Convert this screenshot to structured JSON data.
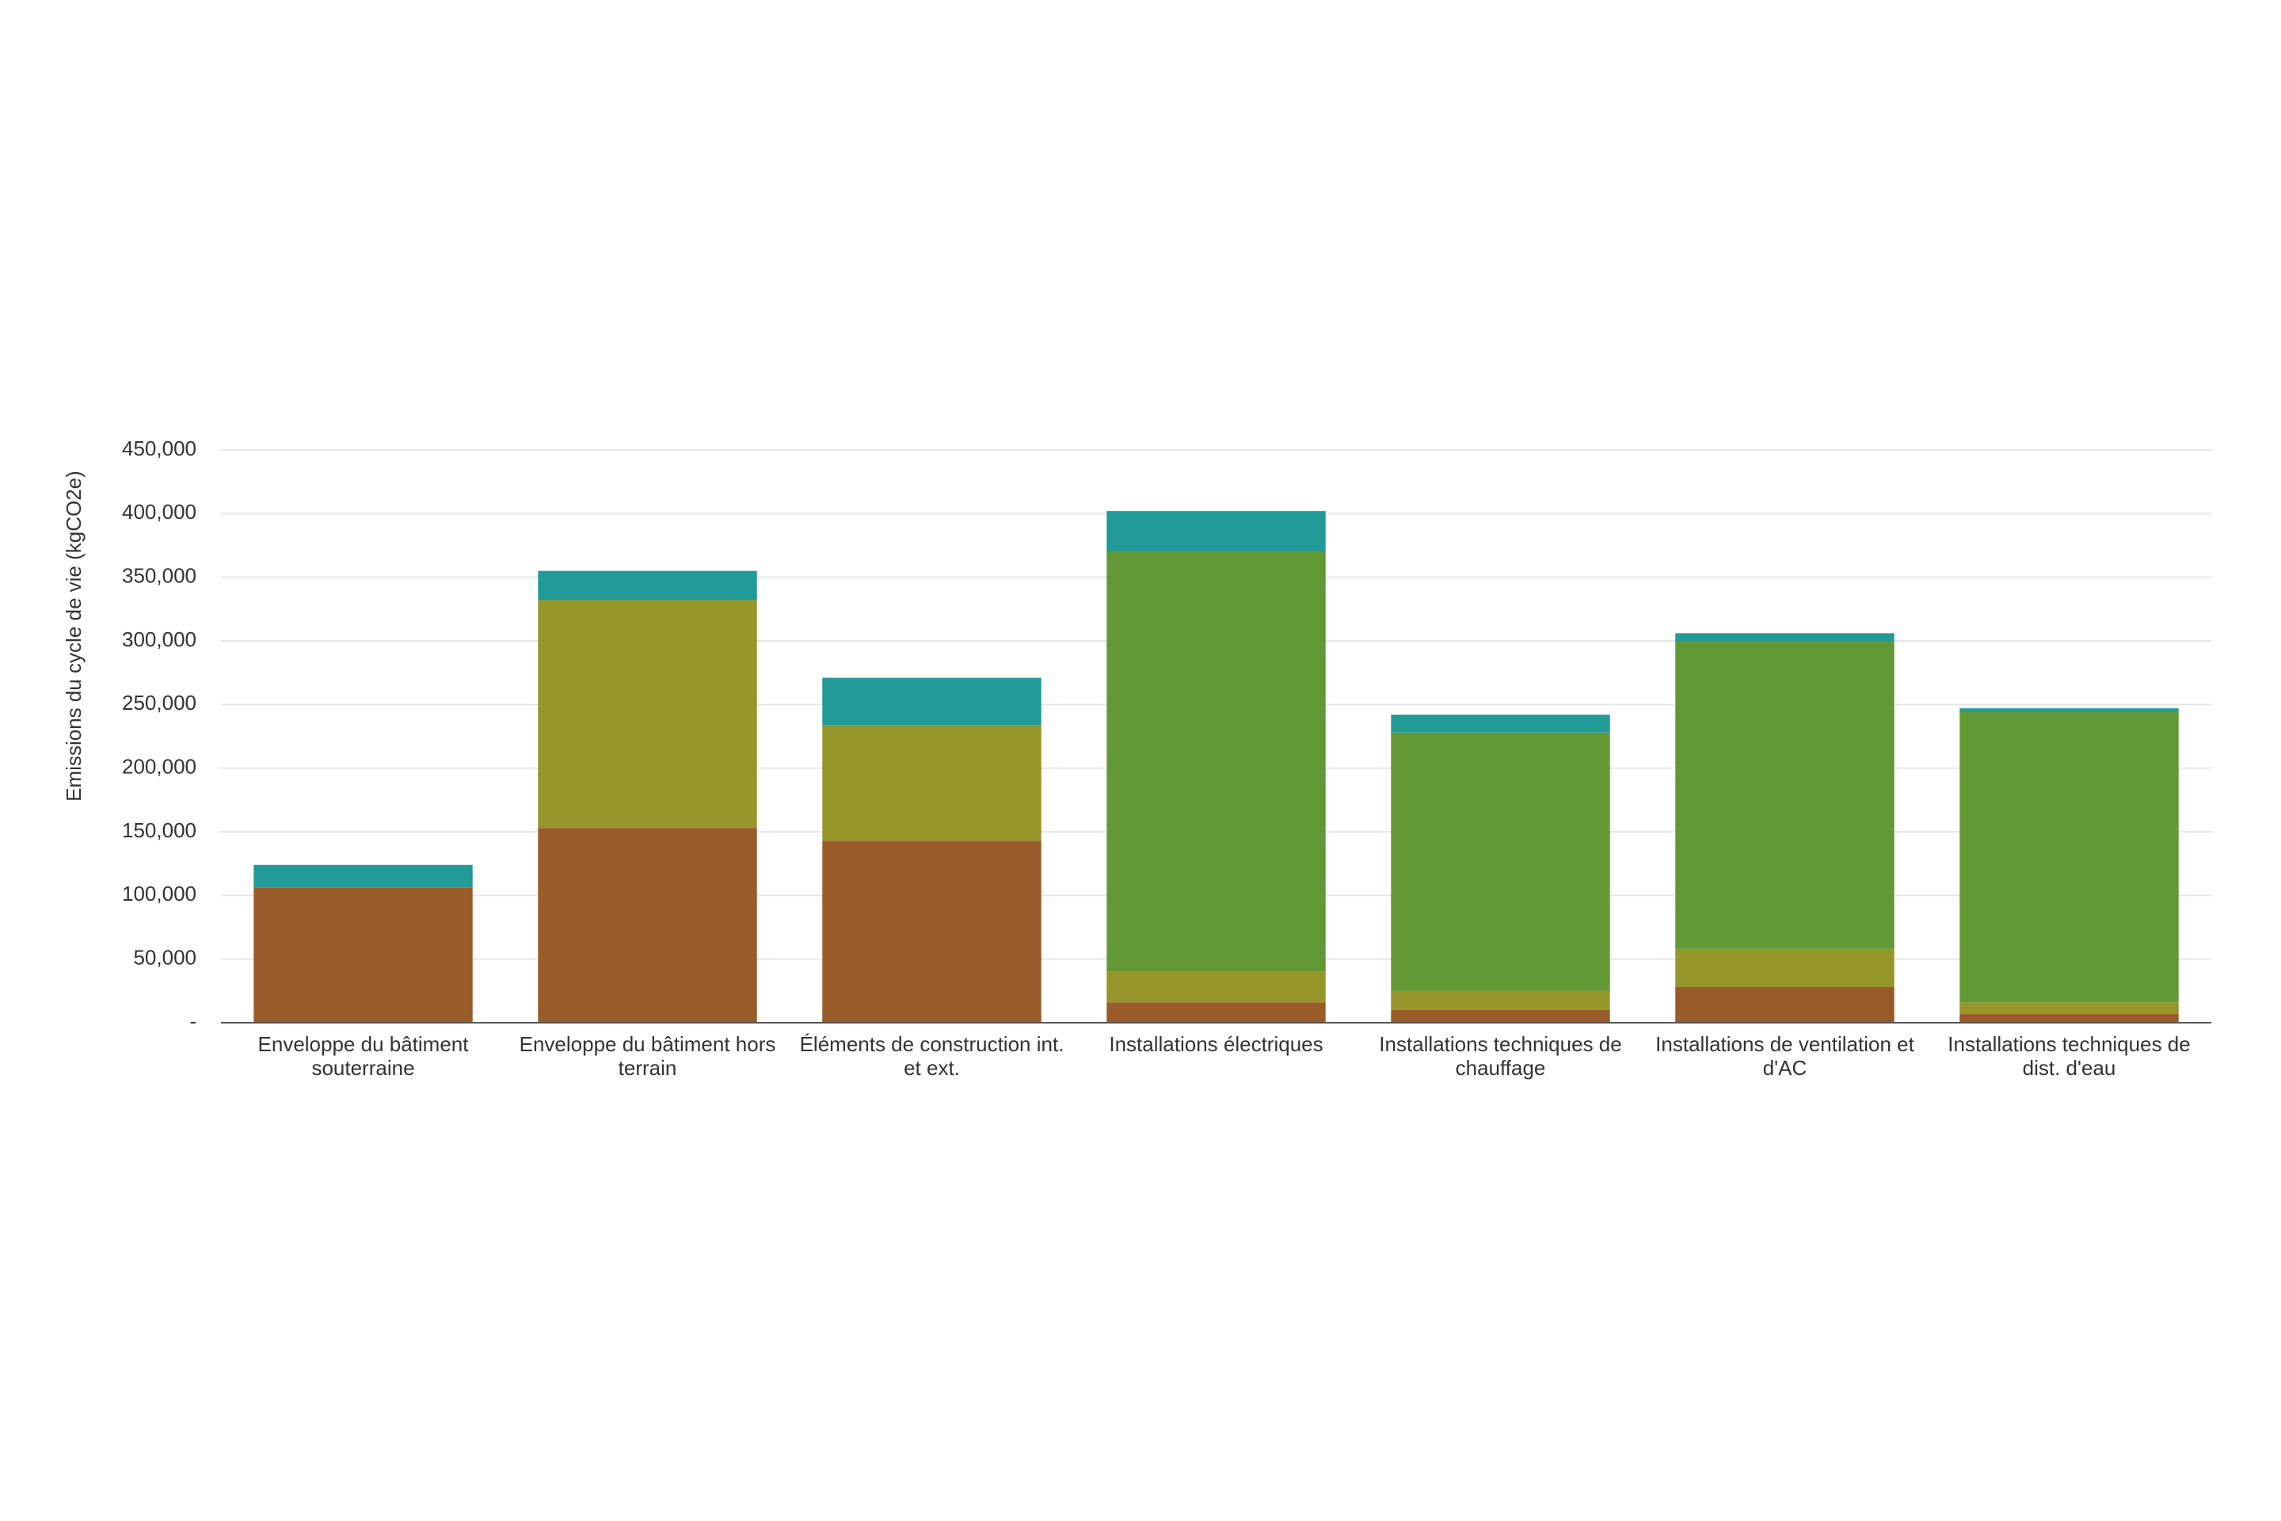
{
  "chart_data": {
    "type": "stacked_bar",
    "y_label": "Emissions du cycle de vie (kgCO2e)",
    "categories": [
      "Enveloppe du bâtiment souterraine",
      "Enveloppe du bâtiment hors terrain",
      "Éléments de construction int. et ext.",
      "Installations électriques",
      "Installations techniques de chauffage",
      "Installations de ventilation et d'AC",
      "Installations techniques de dist. d'eau"
    ],
    "series": [
      {
        "color": "#9a5b2a",
        "values": [
          106000,
          153000,
          143000,
          16000,
          10000,
          28000,
          7000
        ]
      },
      {
        "color": "#96962b",
        "values": [
          0,
          179000,
          91000,
          24000,
          15000,
          30000,
          9000
        ]
      },
      {
        "color": "#629935",
        "values": [
          0,
          0,
          0,
          330000,
          203000,
          242000,
          228000
        ]
      },
      {
        "color": "#229a98",
        "values": [
          18000,
          23000,
          37000,
          32000,
          14000,
          6000,
          3000
        ]
      }
    ],
    "ylim": [
      0,
      450000
    ],
    "yticks": [
      {
        "value": 0,
        "label": "-"
      },
      {
        "value": 50000,
        "label": "50,000"
      },
      {
        "value": 100000,
        "label": "100,000"
      },
      {
        "value": 150000,
        "label": "150,000"
      },
      {
        "value": 200000,
        "label": "200,000"
      },
      {
        "value": 250000,
        "label": "250,000"
      },
      {
        "value": 300000,
        "label": "300,000"
      },
      {
        "value": 350000,
        "label": "350,000"
      },
      {
        "value": 400000,
        "label": "400,000"
      },
      {
        "value": 450000,
        "label": "450,000"
      }
    ],
    "grid": true
  }
}
